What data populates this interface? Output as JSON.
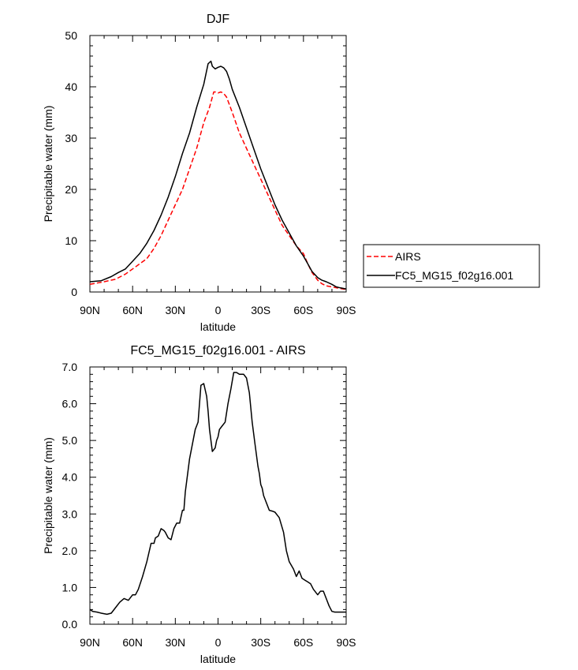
{
  "chart_data": [
    {
      "type": "line",
      "title": "DJF",
      "xlabel": "latitude",
      "ylabel": "Precipitable water (mm)",
      "xlim": [
        0,
        180
      ],
      "ylim": [
        0,
        50
      ],
      "x_ticks": [
        {
          "value": 0,
          "label": "90N"
        },
        {
          "value": 30,
          "label": "60N"
        },
        {
          "value": 60,
          "label": "30N"
        },
        {
          "value": 90,
          "label": "0"
        },
        {
          "value": 120,
          "label": "30S"
        },
        {
          "value": 150,
          "label": "60S"
        },
        {
          "value": 180,
          "label": "90S"
        }
      ],
      "y_ticks": [
        {
          "value": 0,
          "label": "0"
        },
        {
          "value": 10,
          "label": "10"
        },
        {
          "value": 20,
          "label": "20"
        },
        {
          "value": 30,
          "label": "30"
        },
        {
          "value": 40,
          "label": "40"
        },
        {
          "value": 50,
          "label": "50"
        }
      ],
      "legend_position": "right",
      "series": [
        {
          "name": "AIRS",
          "color": "#ff0000",
          "dash": true,
          "x": [
            0,
            10,
            18,
            25,
            30,
            35,
            40,
            45,
            50,
            55,
            60,
            65,
            70,
            75,
            80,
            84,
            87,
            88,
            90,
            92,
            94,
            96,
            100,
            105,
            110,
            115,
            120,
            125,
            130,
            135,
            140,
            145,
            150,
            153,
            156,
            160,
            163,
            166,
            170,
            175,
            180
          ],
          "y": [
            1.5,
            2,
            2.5,
            3.5,
            4.5,
            5.5,
            6.5,
            8.5,
            11,
            14,
            17,
            20,
            24,
            28,
            33,
            36,
            39,
            39,
            38.8,
            39,
            38.7,
            38,
            35,
            31,
            28,
            25,
            22,
            19,
            16,
            13,
            11,
            9,
            7.5,
            5.5,
            3.8,
            2.3,
            1.6,
            1.2,
            1,
            0.7,
            0.5
          ]
        },
        {
          "name": "FC5_MG15_f02g16.001",
          "color": "#000000",
          "dash": false,
          "x": [
            0,
            8,
            15,
            20,
            25,
            30,
            35,
            40,
            45,
            50,
            55,
            60,
            65,
            70,
            75,
            80,
            83,
            85,
            86,
            88,
            90,
            92,
            94,
            96,
            98,
            100,
            105,
            110,
            115,
            120,
            125,
            130,
            135,
            140,
            145,
            150,
            153,
            156,
            160,
            163,
            166,
            170,
            173,
            176,
            180
          ],
          "y": [
            2,
            2.2,
            3,
            3.8,
            4.5,
            6,
            7.5,
            9.5,
            12,
            15,
            18.5,
            22.5,
            27,
            31,
            36,
            40.5,
            44.5,
            45,
            44,
            43.5,
            43.8,
            44,
            43.7,
            43,
            41.5,
            39.5,
            36,
            32,
            28,
            24,
            20.5,
            17,
            14,
            11.5,
            9,
            7,
            5.5,
            4,
            2.8,
            2.3,
            2,
            1.5,
            1,
            0.8,
            0.6
          ]
        }
      ]
    },
    {
      "type": "line",
      "title": "FC5_MG15_f02g16.001 - AIRS",
      "xlabel": "latitude",
      "ylabel": "Precipitable water (mm)",
      "xlim": [
        0,
        180
      ],
      "ylim": [
        0,
        7
      ],
      "x_ticks": [
        {
          "value": 0,
          "label": "90N"
        },
        {
          "value": 30,
          "label": "60N"
        },
        {
          "value": 60,
          "label": "30N"
        },
        {
          "value": 90,
          "label": "0"
        },
        {
          "value": 120,
          "label": "30S"
        },
        {
          "value": 150,
          "label": "60S"
        },
        {
          "value": 180,
          "label": "90S"
        }
      ],
      "y_ticks": [
        {
          "value": 0,
          "label": "0.0"
        },
        {
          "value": 1,
          "label": "1.0"
        },
        {
          "value": 2,
          "label": "2.0"
        },
        {
          "value": 3,
          "label": "3.0"
        },
        {
          "value": 4,
          "label": "4.0"
        },
        {
          "value": 5,
          "label": "5.0"
        },
        {
          "value": 6,
          "label": "6.0"
        },
        {
          "value": 7,
          "label": "7.0"
        }
      ],
      "series": [
        {
          "name": "",
          "color": "#000000",
          "dash": false,
          "x": [
            0,
            2,
            5,
            8,
            12,
            15,
            18,
            21,
            24,
            27,
            30,
            32,
            34,
            37,
            40,
            43,
            45,
            46,
            48,
            50,
            52,
            53,
            55,
            57,
            59,
            61,
            63,
            65,
            66,
            67,
            68,
            69,
            70,
            72,
            74,
            76,
            78,
            80,
            82,
            83,
            84,
            85,
            86,
            87,
            88,
            89,
            90,
            91,
            93,
            95,
            97,
            99,
            101,
            103,
            105,
            108,
            110,
            112,
            114,
            116,
            118,
            119,
            120,
            121,
            122,
            124,
            126,
            128,
            130,
            133,
            136,
            138,
            140,
            143,
            145,
            147,
            149,
            151,
            153,
            155,
            157,
            158,
            159,
            160,
            162,
            164,
            166,
            168,
            170,
            172,
            174,
            176,
            178,
            180
          ],
          "y": [
            0.4,
            0.35,
            0.33,
            0.3,
            0.27,
            0.3,
            0.45,
            0.6,
            0.7,
            0.65,
            0.8,
            0.8,
            0.95,
            1.3,
            1.7,
            2.2,
            2.2,
            2.35,
            2.4,
            2.6,
            2.55,
            2.5,
            2.35,
            2.3,
            2.6,
            2.75,
            2.75,
            3.1,
            3.1,
            3.6,
            3.9,
            4.2,
            4.5,
            4.9,
            5.3,
            5.5,
            6.5,
            6.55,
            6.2,
            5.8,
            5.3,
            5.0,
            4.7,
            4.75,
            4.8,
            5.0,
            5.1,
            5.3,
            5.4,
            5.5,
            6.0,
            6.4,
            6.85,
            6.85,
            6.8,
            6.8,
            6.7,
            6.3,
            5.5,
            4.9,
            4.3,
            4.1,
            3.8,
            3.7,
            3.5,
            3.3,
            3.1,
            3.08,
            3.05,
            2.9,
            2.5,
            2.0,
            1.7,
            1.5,
            1.3,
            1.45,
            1.25,
            1.2,
            1.15,
            1.1,
            0.95,
            0.9,
            0.85,
            0.8,
            0.9,
            0.9,
            0.7,
            0.5,
            0.35,
            0.33,
            0.33,
            0.33,
            0.33,
            0.33
          ]
        }
      ]
    }
  ]
}
